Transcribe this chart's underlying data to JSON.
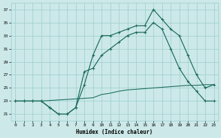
{
  "xlabel": "Humidex (Indice chaleur)",
  "background_color": "#cce8e8",
  "grid_color": "#99cccc",
  "line_color": "#1a6b5a",
  "xlim": [
    -0.5,
    23.5
  ],
  "ylim": [
    20.0,
    38.0
  ],
  "yticks": [
    21,
    23,
    25,
    27,
    29,
    31,
    33,
    35,
    37
  ],
  "xticks": [
    0,
    1,
    2,
    3,
    4,
    5,
    6,
    7,
    8,
    9,
    10,
    11,
    12,
    13,
    14,
    15,
    16,
    17,
    18,
    19,
    20,
    21,
    22,
    23
  ],
  "line1_x": [
    0,
    1,
    2,
    3,
    4,
    5,
    6,
    7,
    8,
    9,
    10,
    11,
    12,
    13,
    14,
    15,
    16,
    17,
    18,
    19,
    20,
    21,
    22,
    23
  ],
  "line1_y": [
    23,
    23,
    23,
    23,
    22,
    21,
    21,
    22,
    25.5,
    30,
    33,
    33,
    33.5,
    34,
    34.5,
    34.5,
    37,
    35.5,
    34,
    33,
    30,
    27,
    25,
    25.5
  ],
  "line2_x": [
    0,
    1,
    2,
    3,
    4,
    5,
    6,
    7,
    8,
    9,
    10,
    11,
    12,
    13,
    14,
    15,
    16,
    17,
    18,
    19,
    20,
    21,
    22,
    23
  ],
  "line2_y": [
    23,
    23,
    23,
    23,
    22,
    21,
    21,
    22,
    27.5,
    28,
    30,
    31,
    32,
    33,
    33.5,
    33.5,
    35,
    34,
    31,
    28,
    26,
    24.5,
    23,
    23
  ],
  "line3_x": [
    0,
    3,
    9,
    10,
    11,
    12,
    13,
    14,
    15,
    16,
    17,
    18,
    19,
    20,
    21,
    22,
    23
  ],
  "line3_y": [
    23,
    23,
    23.5,
    24,
    24.2,
    24.5,
    24.7,
    24.8,
    24.9,
    25.0,
    25.1,
    25.2,
    25.3,
    25.4,
    25.4,
    25.5,
    25.5
  ]
}
